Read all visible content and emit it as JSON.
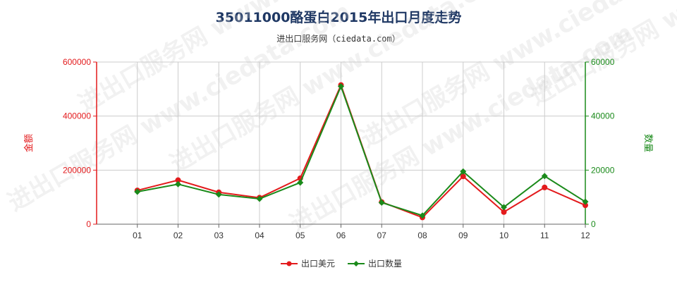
{
  "title": "35011000酪蛋白2015年出口月度走势",
  "subtitle": "进出口服务网（ciedata.com）",
  "watermark": "进出口服务网 www.ciedata.com",
  "chart_data": {
    "type": "line",
    "categories": [
      "01",
      "02",
      "03",
      "04",
      "05",
      "06",
      "07",
      "08",
      "09",
      "10",
      "11",
      "12"
    ],
    "series": [
      {
        "name": "出口美元",
        "axis": "left",
        "color": "#e31a1c",
        "values": [
          125000,
          163000,
          118000,
          98000,
          170000,
          515000,
          82000,
          25000,
          177000,
          45000,
          136000,
          70000
        ]
      },
      {
        "name": "出口数量",
        "axis": "right",
        "color": "#1a8a1a",
        "values": [
          12000,
          14800,
          11000,
          9400,
          15400,
          51000,
          8000,
          3200,
          19500,
          6300,
          17800,
          8300
        ]
      }
    ],
    "y_left": {
      "label": "金额",
      "ylim": [
        0,
        600000
      ],
      "ticks": [
        "0",
        "200000",
        "400000",
        "600000"
      ],
      "color": "#e31a1c"
    },
    "y_right": {
      "label": "数量",
      "ylim": [
        0,
        60000
      ],
      "ticks": [
        "0",
        "20000",
        "40000",
        "60000"
      ],
      "color": "#1a8a1a"
    },
    "grid": true,
    "legend_position": "bottom-center"
  }
}
